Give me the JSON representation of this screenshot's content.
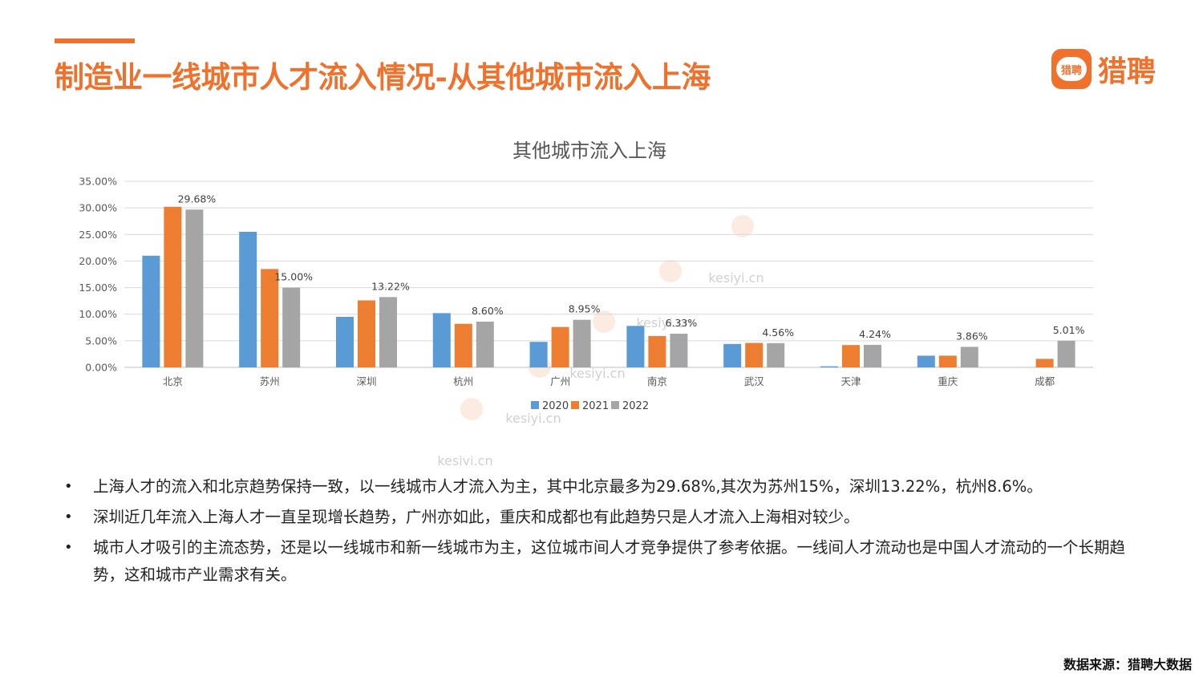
{
  "page": {
    "title": "制造业一线城市人才流入情况-从其他城市流入上海",
    "accent_color": "#F0712B"
  },
  "logo": {
    "badge_text": "猎聘",
    "text": "猎聘"
  },
  "chart_data": {
    "type": "bar",
    "title": "其他城市流入上海",
    "categories": [
      "北京",
      "苏州",
      "深圳",
      "杭州",
      "广州",
      "南京",
      "武汉",
      "天津",
      "重庆",
      "成都"
    ],
    "series": [
      {
        "name": "2020",
        "color": "#5B9BD5",
        "values": [
          21.0,
          25.5,
          9.5,
          10.2,
          4.8,
          7.8,
          4.4,
          0.2,
          2.2,
          0.0
        ]
      },
      {
        "name": "2021",
        "color": "#ED7D31",
        "values": [
          30.2,
          18.5,
          12.6,
          8.2,
          7.6,
          5.9,
          4.6,
          4.2,
          2.2,
          1.6
        ]
      },
      {
        "name": "2022",
        "color": "#A5A5A5",
        "values": [
          29.68,
          15.0,
          13.22,
          8.6,
          8.95,
          6.33,
          4.56,
          4.24,
          3.86,
          5.01
        ]
      }
    ],
    "data_labels": [
      "29.68%",
      "15.00%",
      "13.22%",
      "8.60%",
      "8.95%",
      "6.33%",
      "4.56%",
      "4.24%",
      "3.86%",
      "5.01%"
    ],
    "y_ticks": [
      "0.00%",
      "5.00%",
      "10.00%",
      "15.00%",
      "20.00%",
      "25.00%",
      "30.00%",
      "35.00%"
    ],
    "ylim": [
      0,
      35
    ],
    "grid": true,
    "legend_position": "bottom"
  },
  "watermarks": [
    "kesiyi.cn",
    "kesiyi.cn",
    "kesiyi.cn",
    "kesiyi.cn",
    "kesiyi.cn"
  ],
  "bullets": [
    {
      "marker": "•",
      "text": "上海人才的流入和北京趋势保持一致，以一线城市人才流入为主，其中北京最多为29.68%,其次为苏州15%，深圳13.22%，杭州8.6%。"
    },
    {
      "marker": "•",
      "text": "深圳近几年流入上海人才一直呈现增长趋势，广州亦如此，重庆和成都也有此趋势只是人才流入上海相对较少。"
    },
    {
      "marker": "•",
      "text": "城市人才吸引的主流态势，还是以一线城市和新一线城市为主，这位城市间人才竞争提供了参考依据。一线间人才流动也是中国人才流动的一个长期趋势，这和城市产业需求有关。"
    }
  ],
  "source": "数据来源：猎聘大数据"
}
